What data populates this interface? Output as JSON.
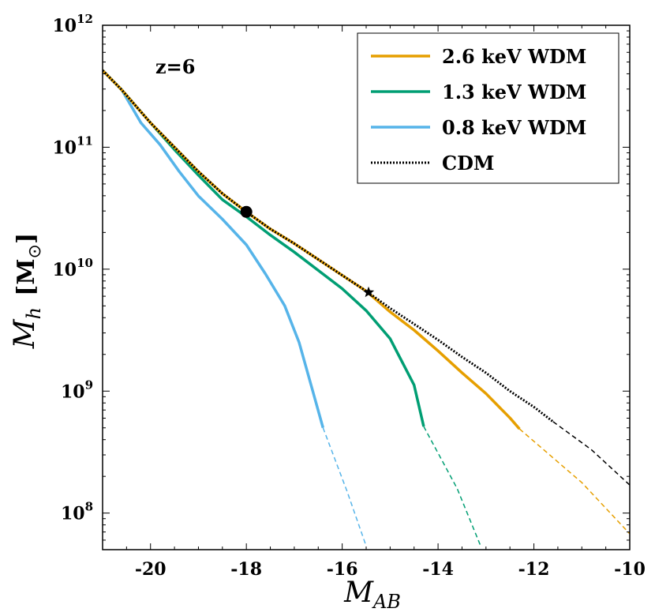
{
  "chart_data": {
    "type": "line",
    "title": "",
    "annotation": "z=6",
    "xlabel": {
      "main": "M",
      "sub": "AB"
    },
    "ylabel": {
      "main": "M",
      "sub": "h",
      "unit": "[M",
      "unit_sub": "⊙",
      "unit_close": "]"
    },
    "xlim": [
      -21,
      -10
    ],
    "ylog10lim": [
      7.7,
      12.0
    ],
    "xticks": [
      {
        "value": -20,
        "label": "-20"
      },
      {
        "value": -18,
        "label": "-18"
      },
      {
        "value": -16,
        "label": "-16"
      },
      {
        "value": -14,
        "label": "-14"
      },
      {
        "value": -12,
        "label": "-12"
      },
      {
        "value": -10,
        "label": "-10"
      }
    ],
    "yticks": [
      {
        "log10": 8,
        "base": "10",
        "exp": "8"
      },
      {
        "log10": 9,
        "base": "10",
        "exp": "9"
      },
      {
        "log10": 10,
        "base": "10",
        "exp": "10"
      },
      {
        "log10": 11,
        "base": "10",
        "exp": "11"
      },
      {
        "log10": 12,
        "base": "10",
        "exp": "12"
      }
    ],
    "legend_position": "top-right",
    "series": [
      {
        "name": "2.6 keV WDM",
        "color": "#E69F00",
        "points": [
          [
            -21.0,
            11.63
          ],
          [
            -20.6,
            11.47
          ],
          [
            -20.0,
            11.2
          ],
          [
            -19.5,
            11.0
          ],
          [
            -19.0,
            10.8
          ],
          [
            -18.5,
            10.62
          ],
          [
            -18.0,
            10.47
          ],
          [
            -17.5,
            10.33
          ],
          [
            -17.0,
            10.21
          ],
          [
            -16.5,
            10.08
          ],
          [
            -16.0,
            9.95
          ],
          [
            -15.5,
            9.82
          ],
          [
            -15.0,
            9.65
          ],
          [
            -14.5,
            9.5
          ],
          [
            -14.0,
            9.33
          ],
          [
            -13.5,
            9.15
          ],
          [
            -13.0,
            8.98
          ],
          [
            -12.5,
            8.78
          ],
          [
            -12.3,
            8.69
          ]
        ],
        "extrapolation": [
          [
            -12.3,
            8.69
          ],
          [
            -11.0,
            8.25
          ],
          [
            -10.0,
            7.83
          ]
        ]
      },
      {
        "name": "1.3 keV WDM",
        "color": "#009E73",
        "points": [
          [
            -21.0,
            11.63
          ],
          [
            -20.6,
            11.47
          ],
          [
            -20.0,
            11.2
          ],
          [
            -19.5,
            10.98
          ],
          [
            -19.0,
            10.77
          ],
          [
            -18.5,
            10.57
          ],
          [
            -18.0,
            10.43
          ],
          [
            -17.5,
            10.28
          ],
          [
            -17.0,
            10.14
          ],
          [
            -16.5,
            9.99
          ],
          [
            -16.0,
            9.84
          ],
          [
            -15.5,
            9.66
          ],
          [
            -15.0,
            9.43
          ],
          [
            -14.5,
            9.05
          ],
          [
            -14.3,
            8.71
          ]
        ],
        "extrapolation": [
          [
            -14.3,
            8.71
          ],
          [
            -13.6,
            8.2
          ],
          [
            -13.1,
            7.72
          ]
        ]
      },
      {
        "name": "0.8 keV WDM",
        "color": "#56B4E9",
        "points": [
          [
            -21.0,
            11.63
          ],
          [
            -20.6,
            11.47
          ],
          [
            -20.2,
            11.2
          ],
          [
            -19.8,
            11.02
          ],
          [
            -19.4,
            10.8
          ],
          [
            -19.0,
            10.6
          ],
          [
            -18.5,
            10.41
          ],
          [
            -18.0,
            10.2
          ],
          [
            -17.6,
            9.96
          ],
          [
            -17.2,
            9.7
          ],
          [
            -16.9,
            9.4
          ],
          [
            -16.6,
            8.98
          ],
          [
            -16.4,
            8.7
          ]
        ],
        "extrapolation": [
          [
            -16.4,
            8.7
          ],
          [
            -15.9,
            8.18
          ],
          [
            -15.5,
            7.73
          ]
        ]
      },
      {
        "name": "CDM",
        "color": "#000000",
        "points": [
          [
            -21.0,
            11.63
          ],
          [
            -20.6,
            11.47
          ],
          [
            -20.0,
            11.2
          ],
          [
            -19.5,
            11.0
          ],
          [
            -19.0,
            10.8
          ],
          [
            -18.5,
            10.62
          ],
          [
            -18.0,
            10.47
          ],
          [
            -17.5,
            10.33
          ],
          [
            -17.0,
            10.21
          ],
          [
            -16.5,
            10.08
          ],
          [
            -16.0,
            9.95
          ],
          [
            -15.5,
            9.82
          ],
          [
            -15.0,
            9.68
          ],
          [
            -14.5,
            9.55
          ],
          [
            -14.0,
            9.42
          ],
          [
            -13.5,
            9.28
          ],
          [
            -13.0,
            9.15
          ],
          [
            -12.5,
            9.0
          ],
          [
            -12.0,
            8.87
          ],
          [
            -11.6,
            8.75
          ]
        ],
        "extrapolation": [
          [
            -11.6,
            8.75
          ],
          [
            -10.8,
            8.52
          ],
          [
            -10.0,
            8.23
          ]
        ]
      }
    ],
    "markers": [
      {
        "name": "circle-marker",
        "shape": "circle",
        "x": -18.0,
        "log10y": 10.47
      },
      {
        "name": "star-marker",
        "shape": "star",
        "x": -15.45,
        "log10y": 9.81
      }
    ]
  }
}
